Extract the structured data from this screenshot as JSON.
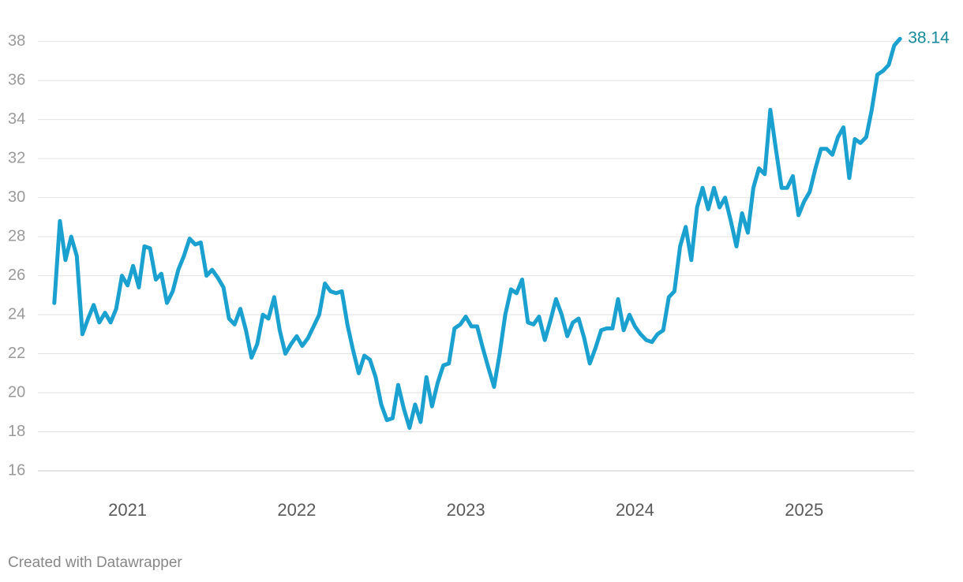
{
  "chart_data": {
    "type": "line",
    "credit": "Created with Datawrapper",
    "x": [
      2020.567,
      2020.6,
      2020.633,
      2020.667,
      2020.7,
      2020.733,
      2020.767,
      2020.8,
      2020.833,
      2020.867,
      2020.9,
      2020.933,
      2020.967,
      2021,
      2021.033,
      2021.067,
      2021.1,
      2021.133,
      2021.167,
      2021.2,
      2021.233,
      2021.267,
      2021.3,
      2021.333,
      2021.367,
      2021.4,
      2021.433,
      2021.467,
      2021.5,
      2021.533,
      2021.567,
      2021.6,
      2021.633,
      2021.667,
      2021.7,
      2021.733,
      2021.767,
      2021.8,
      2021.833,
      2021.867,
      2021.9,
      2021.933,
      2021.967,
      2022,
      2022.033,
      2022.067,
      2022.1,
      2022.133,
      2022.167,
      2022.2,
      2022.233,
      2022.267,
      2022.3,
      2022.333,
      2022.367,
      2022.4,
      2022.433,
      2022.467,
      2022.5,
      2022.533,
      2022.567,
      2022.6,
      2022.633,
      2022.667,
      2022.7,
      2022.733,
      2022.767,
      2022.8,
      2022.833,
      2022.867,
      2022.9,
      2022.933,
      2022.967,
      2023,
      2023.033,
      2023.067,
      2023.1,
      2023.133,
      2023.167,
      2023.2,
      2023.233,
      2023.267,
      2023.3,
      2023.333,
      2023.367,
      2023.4,
      2023.433,
      2023.467,
      2023.5,
      2023.533,
      2023.567,
      2023.6,
      2023.633,
      2023.667,
      2023.7,
      2023.733,
      2023.767,
      2023.8,
      2023.833,
      2023.867,
      2023.9,
      2023.933,
      2023.967,
      2024,
      2024.033,
      2024.067,
      2024.1,
      2024.133,
      2024.167,
      2024.2,
      2024.233,
      2024.267,
      2024.3,
      2024.333,
      2024.367,
      2024.4,
      2024.433,
      2024.467,
      2024.5,
      2024.533,
      2024.567,
      2024.6,
      2024.633,
      2024.667,
      2024.7,
      2024.733,
      2024.767,
      2024.8,
      2024.833,
      2024.867,
      2024.9,
      2024.933,
      2024.967,
      2025,
      2025.033,
      2025.067,
      2025.1,
      2025.133,
      2025.167,
      2025.2,
      2025.233,
      2025.267,
      2025.3,
      2025.333,
      2025.367,
      2025.4,
      2025.433,
      2025.467,
      2025.5,
      2025.533,
      2025.567
    ],
    "series": [
      {
        "color": "#1ba1cf",
        "label_color": "#16899a",
        "values": [
          24.6,
          28.8,
          26.8,
          28.0,
          27.0,
          23.0,
          23.8,
          24.5,
          23.6,
          24.1,
          23.6,
          24.3,
          26.0,
          25.5,
          26.5,
          25.4,
          27.5,
          27.4,
          25.8,
          26.1,
          24.6,
          25.2,
          26.3,
          27.0,
          27.9,
          27.6,
          27.7,
          26.0,
          26.3,
          25.9,
          25.4,
          23.8,
          23.5,
          24.3,
          23.2,
          21.8,
          22.5,
          24.0,
          23.8,
          24.9,
          23.2,
          22.0,
          22.5,
          22.9,
          22.4,
          22.8,
          23.4,
          24.0,
          25.6,
          25.2,
          25.1,
          25.2,
          23.5,
          22.2,
          21.0,
          21.9,
          21.7,
          20.8,
          19.4,
          18.6,
          18.7,
          20.4,
          19.2,
          18.2,
          19.4,
          18.5,
          20.8,
          19.3,
          20.5,
          21.4,
          21.5,
          23.3,
          23.5,
          23.9,
          23.4,
          23.4,
          22.3,
          21.3,
          20.3,
          22.0,
          24.0,
          25.3,
          25.1,
          25.8,
          23.6,
          23.5,
          23.9,
          22.7,
          23.7,
          24.8,
          24.0,
          22.9,
          23.6,
          23.8,
          22.8,
          21.5,
          22.3,
          23.2,
          23.3,
          23.3,
          24.8,
          23.2,
          24.0,
          23.4,
          23.0,
          22.7,
          22.6,
          23.0,
          23.2,
          24.9,
          25.2,
          27.5,
          28.5,
          26.8,
          29.5,
          30.5,
          29.4,
          30.5,
          29.5,
          30.0,
          28.8,
          27.5,
          29.2,
          28.2,
          30.5,
          31.5,
          31.2,
          34.5,
          32.5,
          30.5,
          30.5,
          31.1,
          29.1,
          29.8,
          30.3,
          31.5,
          32.5,
          32.5,
          32.2,
          33.1,
          33.6,
          31.0,
          33.0,
          32.8,
          33.1,
          34.5,
          36.3,
          36.5,
          36.8,
          37.8,
          38.14
        ]
      }
    ],
    "xlim": [
      2020.47,
      2025.65
    ],
    "xticks": [
      2021,
      2022,
      2023,
      2024,
      2025
    ],
    "ylim": [
      16,
      39.4
    ],
    "yticks": [
      16,
      18,
      20,
      22,
      24,
      26,
      28,
      30,
      32,
      34,
      36,
      38
    ],
    "grid": true
  }
}
